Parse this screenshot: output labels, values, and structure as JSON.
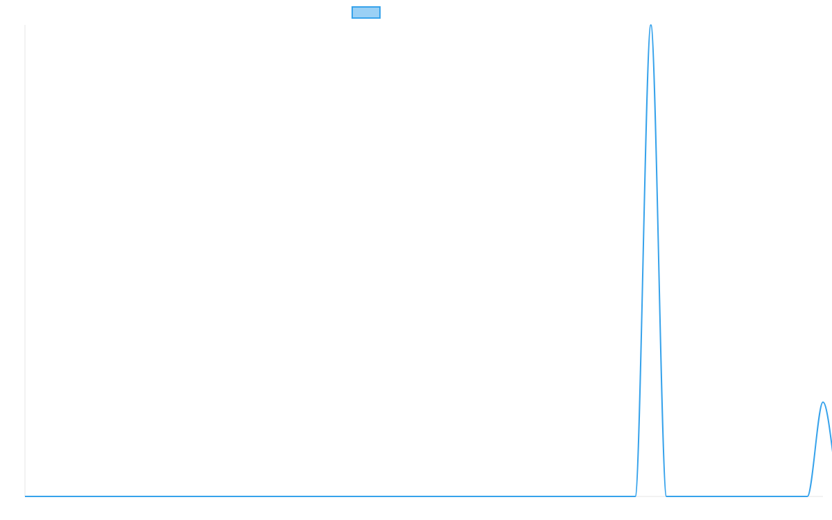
{
  "chart_data": {
    "type": "line",
    "title": "",
    "xlabel": "",
    "ylabel": "",
    "legend": {
      "placement": "top-center",
      "entries": [
        {
          "name": "",
          "color": "#36a2eb",
          "fill": "#9ad0f5"
        }
      ]
    },
    "grid": false,
    "xlim": [
      0,
      51
    ],
    "ylim": [
      0,
      1
    ],
    "series": [
      {
        "name": "",
        "color": "#36a2eb",
        "x": [
          0,
          39,
          40,
          41,
          42,
          50,
          51,
          52
        ],
        "y": [
          0,
          0,
          1,
          0,
          0,
          0,
          0.2,
          0
        ],
        "smooth": true
      }
    ]
  }
}
